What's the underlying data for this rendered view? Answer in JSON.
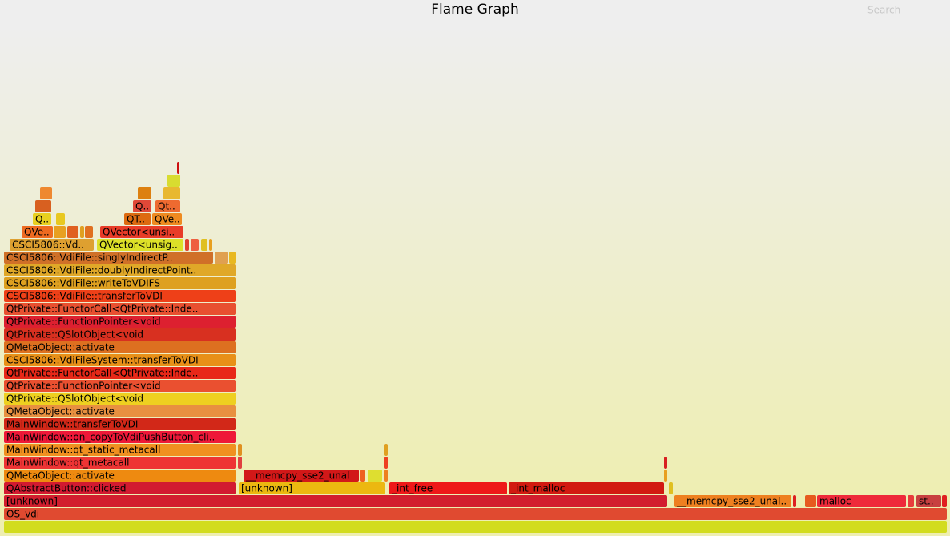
{
  "title": "Flame Graph",
  "search": "Search",
  "frames": [
    "OS_vdi",
    "[unknown]",
    "__memcpy_sse2_unal..",
    "malloc",
    "st..",
    "QAbstractButton::clicked",
    "[unknown]",
    "_int_free",
    "_int_malloc",
    "QMetaObject::activate",
    "__memcpy_sse2_unal",
    "MainWindow::qt_metacall",
    "MainWindow::qt_static_metacall",
    "MainWindow::on_copyToVdiPushButton_cli..",
    "MainWindow::transferToVDI",
    "QMetaObject::activate",
    "QtPrivate::QSlotObject<void",
    "QtPrivate::FunctionPointer<void",
    "QtPrivate::FunctorCall<QtPrivate::Inde..",
    "CSCI5806::VdiFileSystem::transferToVDI",
    "QMetaObject::activate",
    "QtPrivate::QSlotObject<void",
    "QtPrivate::FunctionPointer<void",
    "QtPrivate::FunctorCall<QtPrivate::Inde..",
    "CSCI5806::VdiFile::transferToVDI",
    "CSCI5806::VdiFile::writeToVDIFS",
    "CSCI5806::VdiFile::doublyIndirectPoint..",
    "CSCI5806::VdiFile::singlyIndirectP..",
    "CSCI5806::Vd..",
    "QVector<unsig..",
    "QVe..",
    "QVector<unsi..",
    "Q..",
    "QT..",
    "QVe..",
    "Q..",
    "Qt.."
  ]
}
